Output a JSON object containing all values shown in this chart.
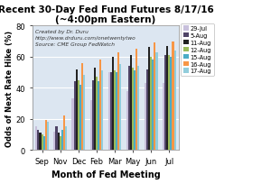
{
  "title": "Recent 30-Day Fed Fund Futures 8/17/16",
  "subtitle": "(~4:00pm Eastern)",
  "xlabel": "Month of Fed Meeting",
  "ylabel": "Odds of Next Rate Hike (%)",
  "annotation": "Created by Dr. Duru\nhttp://www.drduru.com/onetwentytwo\nSource: CME Group FedWatch",
  "categories": [
    "Sep",
    "Nov",
    "Dec",
    "Feb",
    "Mar",
    "May",
    "Jun",
    "Jul"
  ],
  "legend_labels": [
    "29-Jul",
    "5-Aug",
    "11-Aug",
    "12-Aug",
    "15-Aug",
    "16-Aug",
    "17-Aug"
  ],
  "bar_colors": [
    "#c8c0dc",
    "#4f4466",
    "#222222",
    "#9bbb59",
    "#4bacc6",
    "#f79646",
    "#92cddc"
  ],
  "data": {
    "29-Jul": [
      15,
      12,
      33,
      32,
      50,
      38,
      43,
      43
    ],
    "5-Aug": [
      13,
      15,
      44,
      45,
      50,
      54,
      52,
      61
    ],
    "11-Aug": [
      11,
      11,
      52,
      53,
      60,
      61,
      66,
      67
    ],
    "12-Aug": [
      10,
      9,
      45,
      47,
      51,
      53,
      60,
      61
    ],
    "15-Aug": [
      9,
      13,
      42,
      44,
      50,
      51,
      58,
      60
    ],
    "16-Aug": [
      19,
      22,
      56,
      58,
      63,
      65,
      69,
      70
    ],
    "17-Aug": [
      18,
      15,
      48,
      51,
      55,
      54,
      63,
      64
    ]
  },
  "ylim": [
    0,
    80
  ],
  "yticks": [
    0,
    20,
    40,
    60,
    80
  ],
  "fig_background": "#ffffff",
  "plot_background": "#dce6f1"
}
